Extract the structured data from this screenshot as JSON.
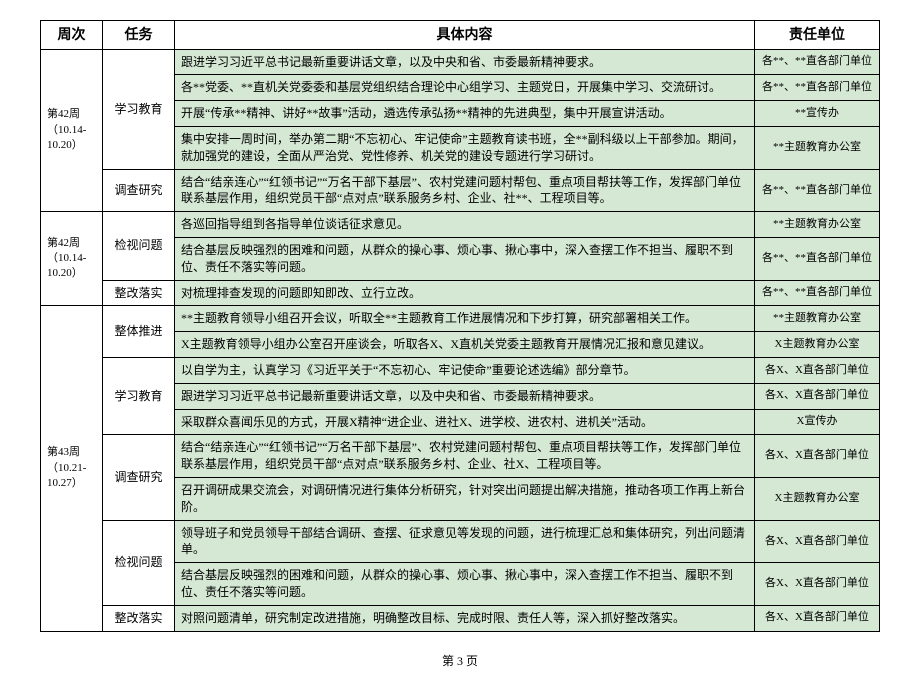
{
  "headers": {
    "week": "周次",
    "task": "任务",
    "content": "具体内容",
    "unit": "责任单位"
  },
  "bg_data": "#d5e8d4",
  "bg_plain": "#ffffff",
  "groups": [
    {
      "week": "第42周（10.14-10.20）",
      "blocks": [
        {
          "task": "学习教育",
          "rows": [
            {
              "content": "跟进学习习近平总书记最新重要讲话文章，以及中央和省、市委最新精神要求。",
              "unit": "各**、**直各部门单位"
            },
            {
              "content": "各**党委、**直机关党委委和基层党组织结合理论中心组学习、主题党日，开展集中学习、交流研讨。",
              "unit": "各**、**直各部门单位"
            },
            {
              "content": "开展“传承**精神、讲好**故事”活动，遴选传承弘扬**精神的先进典型，集中开展宣讲活动。",
              "unit": "**宣传办"
            },
            {
              "content": "集中安排一周时间，举办第二期“不忘初心、牢记使命”主题教育读书班，全**副科级以上干部参加。期间，就加强党的建设，全面从严治党、党性修养、机关党的建设专题进行学习研讨。",
              "unit": "**主题教育办公室"
            }
          ]
        },
        {
          "task": "调查研究",
          "rows": [
            {
              "content": "结合“结亲连心”“红领书记”“万名干部下基层”、农村党建问题村帮包、重点项目帮扶等工作，发挥部门单位联系基层作用，组织党员干部“点对点”联系服务乡村、企业、社**、工程项目等。",
              "unit": "各**、**直各部门单位"
            }
          ]
        }
      ]
    },
    {
      "week": "第42周（10.14-10.20）",
      "blocks": [
        {
          "task": "检视问题",
          "rows": [
            {
              "content": "各巡回指导组到各指导单位谈话征求意见。",
              "unit": "**主题教育办公室"
            },
            {
              "content": "结合基层反映强烈的困难和问题，从群众的操心事、烦心事、揪心事中，深入查摆工作不担当、履职不到位、责任不落实等问题。",
              "unit": "各**、**直各部门单位"
            }
          ]
        },
        {
          "task": "整改落实",
          "rows": [
            {
              "content": "对梳理排查发现的问题即知即改、立行立改。",
              "unit": "各**、**直各部门单位"
            }
          ]
        }
      ]
    },
    {
      "week": "第43周（10.21-10.27）",
      "blocks": [
        {
          "task": "整体推进",
          "rows": [
            {
              "content": "**主题教育领导小组召开会议，听取全**主题教育工作进展情况和下步打算，研究部署相关工作。",
              "unit": "**主题教育办公室"
            },
            {
              "content": "X主题教育领导小组办公室召开座谈会，听取各X、X直机关党委主题教育开展情况汇报和意见建议。",
              "unit": "X主题教育办公室"
            }
          ]
        },
        {
          "task": "学习教育",
          "rows": [
            {
              "content": "以自学为主，认真学习《习近平关于“不忘初心、牢记使命”重要论述选编》部分章节。",
              "unit": "各X、X直各部门单位"
            },
            {
              "content": "跟进学习习近平总书记最新重要讲话文章，以及中央和省、市委最新精神要求。",
              "unit": "各X、X直各部门单位"
            },
            {
              "content": "采取群众喜闻乐见的方式，开展X精神“进企业、进社X、进学校、进农村、进机关”活动。",
              "unit": "X宣传办"
            }
          ]
        },
        {
          "task": "调查研究",
          "rows": [
            {
              "content": "结合“结亲连心”“红领书记”“万名干部下基层”、农村党建问题村帮包、重点项目帮扶等工作，发挥部门单位联系基层作用，组织党员干部“点对点”联系服务乡村、企业、社X、工程项目等。",
              "unit": "各X、X直各部门单位"
            },
            {
              "content": "召开调研成果交流会，对调研情况进行集体分析研究，针对突出问题提出解决措施，推动各项工作再上新台阶。",
              "unit": "X主题教育办公室"
            }
          ]
        },
        {
          "task": "检视问题",
          "rows": [
            {
              "content": "领导班子和党员领导干部结合调研、查摆、征求意见等发现的问题，进行梳理汇总和集体研究，列出问题清单。",
              "unit": "各X、X直各部门单位"
            },
            {
              "content": "结合基层反映强烈的困难和问题，从群众的操心事、烦心事、揪心事中，深入查摆工作不担当、履职不到位、责任不落实等问题。",
              "unit": "各X、X直各部门单位"
            }
          ]
        },
        {
          "task": "整改落实",
          "rows": [
            {
              "content": "对照问题清单，研究制定改进措施，明确整改目标、完成时限、责任人等，深入抓好整改落实。",
              "unit": "各X、X直各部门单位"
            }
          ]
        }
      ]
    }
  ],
  "page_footer": "第 3 页"
}
